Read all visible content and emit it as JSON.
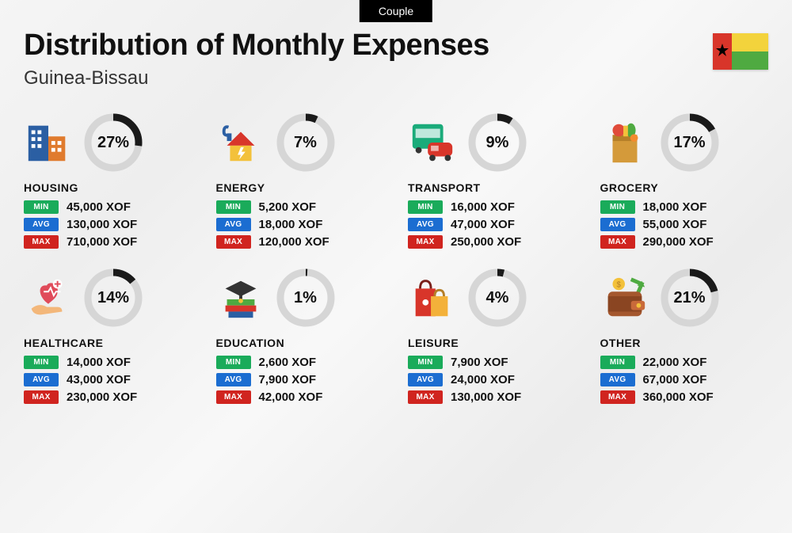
{
  "badge": "Couple",
  "title": "Distribution of Monthly Expenses",
  "subtitle": "Guinea-Bissau",
  "currency": "XOF",
  "flag": {
    "red": "#d8352a",
    "yellow": "#f3d33c",
    "green": "#4faa41",
    "star": "#000000"
  },
  "tag_labels": {
    "min": "MIN",
    "avg": "AVG",
    "max": "MAX"
  },
  "tag_colors": {
    "min": "#1aab5a",
    "avg": "#1b6dd1",
    "max": "#d0241f"
  },
  "donut": {
    "track_color": "#d6d6d6",
    "progress_color": "#1a1a1a",
    "thickness": 9,
    "radius": 32
  },
  "categories": [
    {
      "key": "housing",
      "label": "HOUSING",
      "pct": 27,
      "min": "45,000",
      "avg": "130,000",
      "max": "710,000",
      "icon": "buildings"
    },
    {
      "key": "energy",
      "label": "ENERGY",
      "pct": 7,
      "min": "5,200",
      "avg": "18,000",
      "max": "120,000",
      "icon": "energy-house"
    },
    {
      "key": "transport",
      "label": "TRANSPORT",
      "pct": 9,
      "min": "16,000",
      "avg": "47,000",
      "max": "250,000",
      "icon": "bus-car"
    },
    {
      "key": "grocery",
      "label": "GROCERY",
      "pct": 17,
      "min": "18,000",
      "avg": "55,000",
      "max": "290,000",
      "icon": "grocery-bag"
    },
    {
      "key": "healthcare",
      "label": "HEALTHCARE",
      "pct": 14,
      "min": "14,000",
      "avg": "43,000",
      "max": "230,000",
      "icon": "heart-hand"
    },
    {
      "key": "education",
      "label": "EDUCATION",
      "pct": 1,
      "min": "2,600",
      "avg": "7,900",
      "max": "42,000",
      "icon": "books-cap"
    },
    {
      "key": "leisure",
      "label": "LEISURE",
      "pct": 4,
      "min": "7,900",
      "avg": "24,000",
      "max": "130,000",
      "icon": "shopping-bags"
    },
    {
      "key": "other",
      "label": "OTHER",
      "pct": 21,
      "min": "22,000",
      "avg": "67,000",
      "max": "360,000",
      "icon": "wallet"
    }
  ]
}
